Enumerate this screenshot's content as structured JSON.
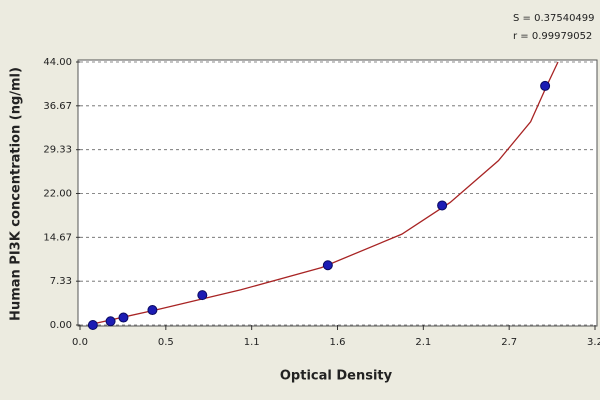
{
  "chart_data": {
    "type": "scatter",
    "x_label": "Optical Density",
    "y_label": "Human PI3K concentration (ng/ml)",
    "annotations": [
      "S = 0.37540499",
      "r = 0.99979052"
    ],
    "xlim": [
      0,
      3.2
    ],
    "ylim": [
      0,
      44
    ],
    "xticks": [
      {
        "value": 0,
        "label": "0.0"
      },
      {
        "value": 0.5333,
        "label": "0.5"
      },
      {
        "value": 1.0667,
        "label": "1.1"
      },
      {
        "value": 1.6,
        "label": "1.6"
      },
      {
        "value": 2.1333,
        "label": "2.1"
      },
      {
        "value": 2.6667,
        "label": "2.7"
      },
      {
        "value": 3.2,
        "label": "3.2"
      }
    ],
    "yticks": [
      {
        "value": 0,
        "label": "0.00"
      },
      {
        "value": 7.33,
        "label": "7.33"
      },
      {
        "value": 14.67,
        "label": "14.67"
      },
      {
        "value": 22,
        "label": "22.00"
      },
      {
        "value": 29.33,
        "label": "29.33"
      },
      {
        "value": 36.67,
        "label": "36.67"
      },
      {
        "value": 44,
        "label": "44.00"
      }
    ],
    "grid": true,
    "series": [
      {
        "kind": "markers",
        "color": "#1c1cb4",
        "x": [
          0.08,
          0.19,
          0.27,
          0.45,
          0.76,
          1.54,
          2.25,
          2.89
        ],
        "values": [
          0,
          0.625,
          1.25,
          2.5,
          5,
          10,
          20,
          40
        ]
      },
      {
        "kind": "line",
        "color": "#a82424",
        "x": [
          0.05,
          0.5,
          1.0,
          1.5,
          2.0,
          2.3,
          2.6,
          2.8,
          2.9,
          2.97
        ],
        "values": [
          0,
          2.7,
          5.9,
          9.6,
          15.2,
          20.5,
          27.5,
          34,
          40,
          44
        ]
      }
    ]
  }
}
